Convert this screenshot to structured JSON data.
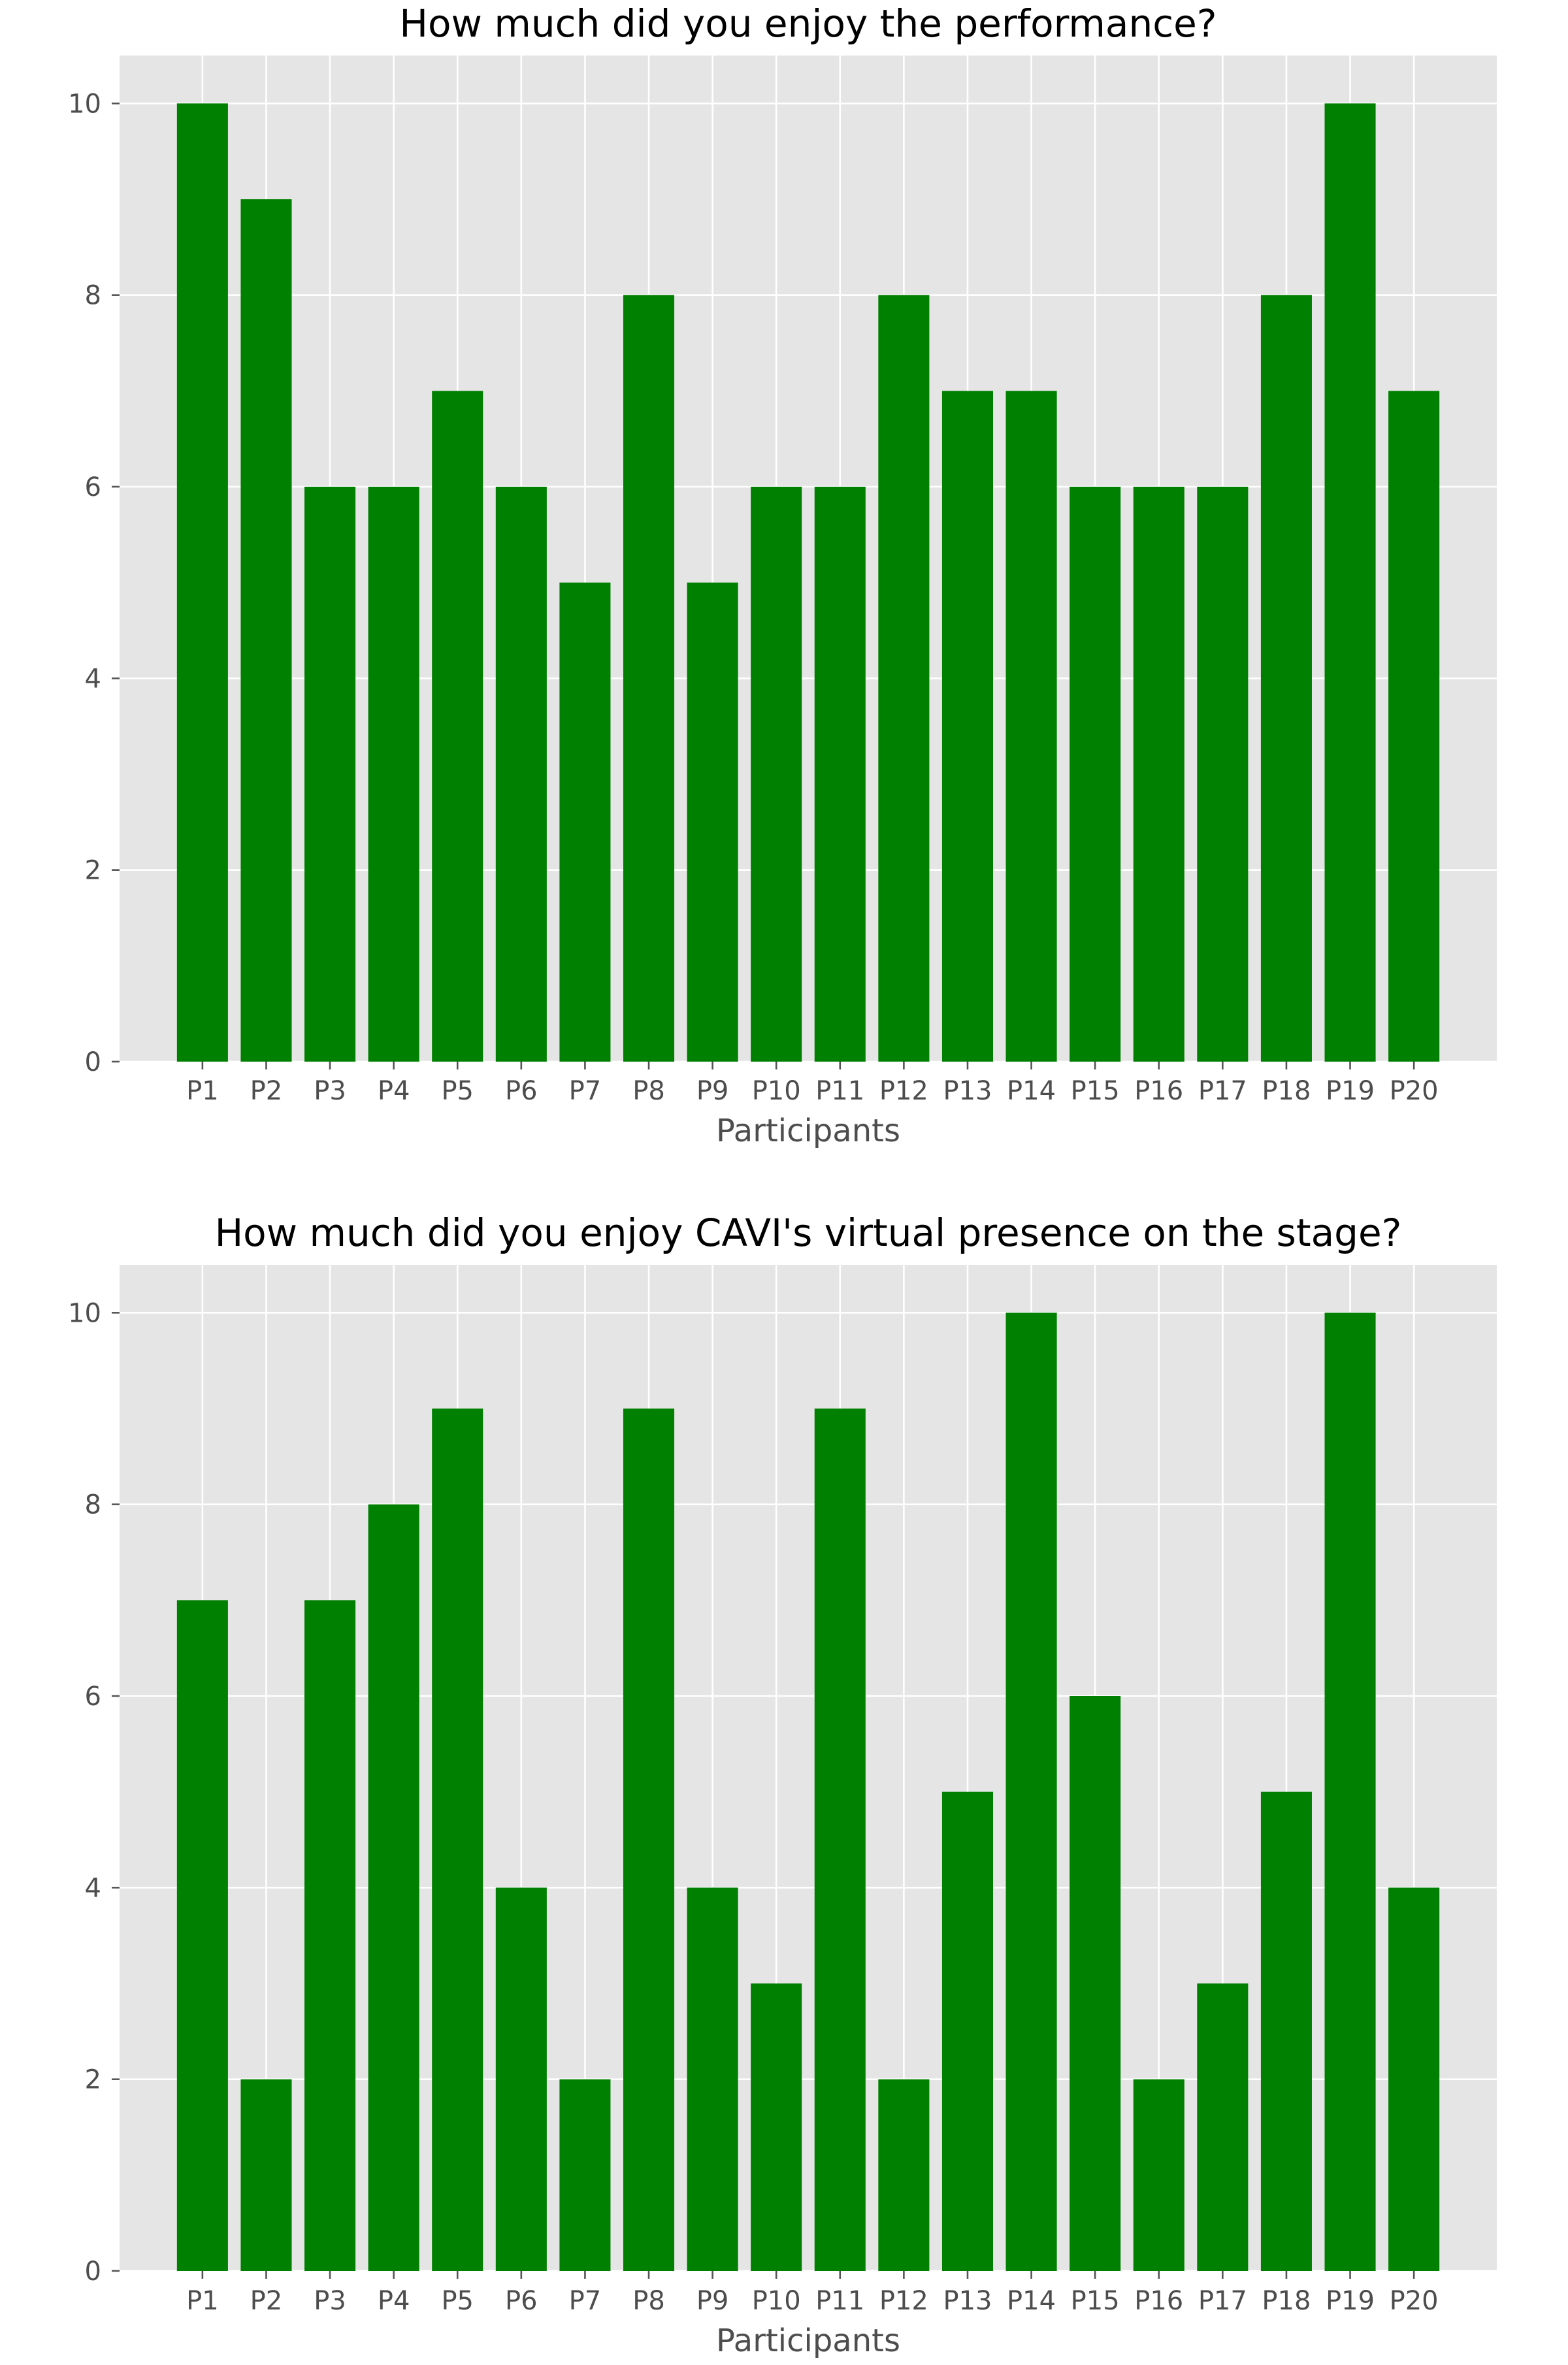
{
  "chart_data": [
    {
      "type": "bar",
      "title": "How much did you enjoy the performance?",
      "xlabel": "Participants",
      "ylabel": "",
      "categories": [
        "P1",
        "P2",
        "P3",
        "P4",
        "P5",
        "P6",
        "P7",
        "P8",
        "P9",
        "P10",
        "P11",
        "P12",
        "P13",
        "P14",
        "P15",
        "P16",
        "P17",
        "P18",
        "P19",
        "P20"
      ],
      "values": [
        10,
        9,
        6,
        6,
        7,
        6,
        5,
        8,
        5,
        6,
        6,
        8,
        7,
        7,
        6,
        6,
        6,
        8,
        10,
        7
      ],
      "ylim": [
        0,
        10.5
      ],
      "yticks": [
        0,
        2,
        4,
        6,
        8,
        10
      ],
      "grid": true,
      "colors": {
        "bar": "#008000",
        "background": "#e5e5e5",
        "grid": "#ffffff"
      }
    },
    {
      "type": "bar",
      "title": "How much did you enjoy CAVI's virtual presence on the stage?",
      "xlabel": "Participants",
      "ylabel": "",
      "categories": [
        "P1",
        "P2",
        "P3",
        "P4",
        "P5",
        "P6",
        "P7",
        "P8",
        "P9",
        "P10",
        "P11",
        "P12",
        "P13",
        "P14",
        "P15",
        "P16",
        "P17",
        "P18",
        "P19",
        "P20"
      ],
      "values": [
        7,
        2,
        7,
        8,
        9,
        4,
        2,
        9,
        4,
        3,
        9,
        2,
        5,
        10,
        6,
        2,
        3,
        5,
        10,
        4
      ],
      "ylim": [
        0,
        10.5
      ],
      "yticks": [
        0,
        2,
        4,
        6,
        8,
        10
      ],
      "grid": true,
      "colors": {
        "bar": "#008000",
        "background": "#e5e5e5",
        "grid": "#ffffff"
      }
    }
  ]
}
